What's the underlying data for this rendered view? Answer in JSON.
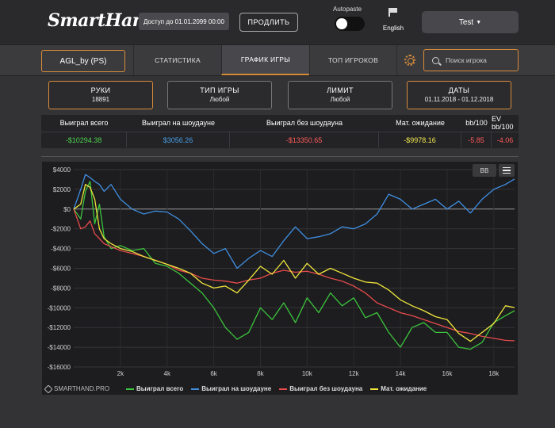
{
  "header": {
    "logo_text": "SmartHand",
    "access_badge": "Доступ до 01.01.2099 00:00",
    "extend_label": "ПРОДЛИТЬ",
    "autopaste_label": "Autopaste",
    "language_label": "English",
    "user_label": "Test"
  },
  "nav": {
    "player": "AGL_by (PS)",
    "tabs": [
      {
        "label": "СТАТИСТИКА"
      },
      {
        "label": "ГРАФИК ИГРЫ"
      },
      {
        "label": "ТОП ИГРОКОВ"
      }
    ],
    "search_placeholder": "Поиск игрока"
  },
  "filters": [
    {
      "title": "РУКИ",
      "value": "18891"
    },
    {
      "title": "ТИП ИГРЫ",
      "value": "Любой"
    },
    {
      "title": "ЛИМИТ",
      "value": "Любой"
    },
    {
      "title": "ДАТЫ",
      "value": "01.11.2018 - 01.12.2018"
    }
  ],
  "stats": {
    "headers": [
      "Выиграл всего",
      "Выиграл на шоудауне",
      "Выиграл без шоудауна",
      "Мат. ожидание",
      "bb/100",
      "EV bb/100"
    ],
    "values": [
      "-$10294.38",
      "$3056.26",
      "-$13350.65",
      "-$9978.16",
      "-5.85",
      "-4.06"
    ],
    "colors": [
      "#4cd24c",
      "#4a9fe8",
      "#ff5a5a",
      "#f2e94e",
      "#ff5a5a",
      "#ff5a5a"
    ]
  },
  "chart": {
    "bb_label": "BB",
    "watermark": "SMARTHAND.PRO"
  },
  "chart_data": {
    "type": "line",
    "xlim": [
      0,
      18891
    ],
    "ylim": [
      -16000,
      4000
    ],
    "x_ticks": [
      2000,
      4000,
      6000,
      8000,
      10000,
      12000,
      14000,
      16000,
      18000
    ],
    "x_tick_labels": [
      "2k",
      "4k",
      "6k",
      "8k",
      "10k",
      "12k",
      "14k",
      "16k",
      "18k"
    ],
    "y_ticks": [
      4000,
      2000,
      0,
      -2000,
      -4000,
      -6000,
      -8000,
      -10000,
      -12000,
      -14000,
      -16000
    ],
    "y_tick_labels": [
      "$4000",
      "$2000",
      "$0",
      "-$2000",
      "-$4000",
      "-$6000",
      "-$8000",
      "-$10000",
      "-$12000",
      "-$14000",
      "-$16000"
    ],
    "grid": true,
    "legend_position": "bottom",
    "series": [
      {
        "name": "Выиграл всего",
        "color": "#3cc43c",
        "x": [
          0,
          300,
          500,
          700,
          900,
          1100,
          1300,
          1600,
          2000,
          2500,
          3000,
          3500,
          4000,
          4500,
          5000,
          5500,
          6000,
          6500,
          7000,
          7500,
          8000,
          8500,
          9000,
          9500,
          10000,
          10500,
          11000,
          11500,
          12000,
          12500,
          13000,
          13500,
          14000,
          14500,
          15000,
          15500,
          16000,
          16500,
          17000,
          17500,
          18000,
          18500,
          18891
        ],
        "y": [
          0,
          -1000,
          1800,
          2800,
          -1500,
          500,
          -2800,
          -4000,
          -3700,
          -4200,
          -4000,
          -5500,
          -5800,
          -6500,
          -7500,
          -8500,
          -10000,
          -12000,
          -13200,
          -12500,
          -10000,
          -11200,
          -9500,
          -11500,
          -9000,
          -10500,
          -8500,
          -9800,
          -9000,
          -11000,
          -10500,
          -12500,
          -14000,
          -12000,
          -11500,
          -12500,
          -12500,
          -14000,
          -14200,
          -13500,
          -11500,
          -10800,
          -10294
        ]
      },
      {
        "name": "Выиграл на шоудауне",
        "color": "#3f8ee0",
        "x": [
          0,
          300,
          500,
          700,
          900,
          1100,
          1300,
          1600,
          2000,
          2500,
          3000,
          3500,
          4000,
          4500,
          5000,
          5500,
          6000,
          6500,
          7000,
          7500,
          8000,
          8500,
          9000,
          9500,
          10000,
          10500,
          11000,
          11500,
          12000,
          12500,
          13000,
          13500,
          14000,
          14500,
          15000,
          15500,
          16000,
          16500,
          17000,
          17500,
          18000,
          18500,
          18891
        ],
        "y": [
          0,
          2000,
          3500,
          3200,
          2800,
          2500,
          1800,
          2500,
          1000,
          0,
          -500,
          -200,
          -300,
          -1000,
          -2200,
          -3500,
          -4500,
          -4000,
          -6000,
          -5000,
          -4200,
          -4800,
          -3200,
          -1800,
          -3000,
          -2800,
          -2500,
          -1800,
          -2000,
          -1500,
          -500,
          1500,
          1000,
          0,
          500,
          1000,
          0,
          800,
          -400,
          1000,
          2000,
          2500,
          3056
        ]
      },
      {
        "name": "Выиграл без шоудауна",
        "color": "#e84b4b",
        "x": [
          0,
          300,
          500,
          700,
          900,
          1100,
          1300,
          1600,
          2000,
          2500,
          3000,
          3500,
          4000,
          4500,
          5000,
          5500,
          6000,
          6500,
          7000,
          7500,
          8000,
          8500,
          9000,
          9500,
          10000,
          10500,
          11000,
          11500,
          12000,
          12500,
          13000,
          13500,
          14000,
          14500,
          15000,
          15500,
          16000,
          16500,
          17000,
          17500,
          18000,
          18500,
          18891
        ],
        "y": [
          0,
          -2000,
          -1800,
          -1200,
          -2500,
          -3000,
          -3500,
          -3800,
          -4200,
          -4500,
          -4800,
          -5200,
          -5600,
          -6200,
          -6500,
          -7000,
          -7200,
          -7300,
          -7500,
          -7200,
          -7000,
          -6500,
          -6200,
          -6400,
          -6300,
          -6600,
          -7000,
          -7300,
          -7800,
          -8500,
          -9500,
          -10000,
          -10500,
          -10800,
          -11200,
          -11600,
          -12000,
          -12400,
          -12600,
          -12900,
          -13100,
          -13300,
          -13351
        ]
      },
      {
        "name": "Мат. ожидание",
        "color": "#f0e63c",
        "x": [
          0,
          300,
          500,
          700,
          900,
          1100,
          1300,
          1600,
          2000,
          2500,
          3000,
          3500,
          4000,
          4500,
          5000,
          5500,
          6000,
          6500,
          7000,
          7500,
          8000,
          8500,
          9000,
          9500,
          10000,
          10500,
          11000,
          11500,
          12000,
          12500,
          13000,
          13500,
          14000,
          14500,
          15000,
          15500,
          16000,
          16500,
          17000,
          17500,
          18000,
          18500,
          18891
        ],
        "y": [
          0,
          500,
          2500,
          2200,
          1000,
          -2000,
          -3000,
          -3500,
          -4000,
          -4300,
          -4800,
          -5200,
          -5600,
          -6000,
          -6500,
          -7500,
          -8000,
          -7800,
          -8500,
          -7200,
          -5800,
          -6600,
          -5200,
          -7000,
          -5500,
          -6600,
          -6000,
          -6500,
          -7000,
          -7400,
          -7500,
          -8200,
          -9200,
          -9800,
          -10300,
          -10900,
          -11200,
          -12600,
          -13400,
          -12500,
          -11600,
          -9800,
          -9978
        ]
      }
    ]
  }
}
